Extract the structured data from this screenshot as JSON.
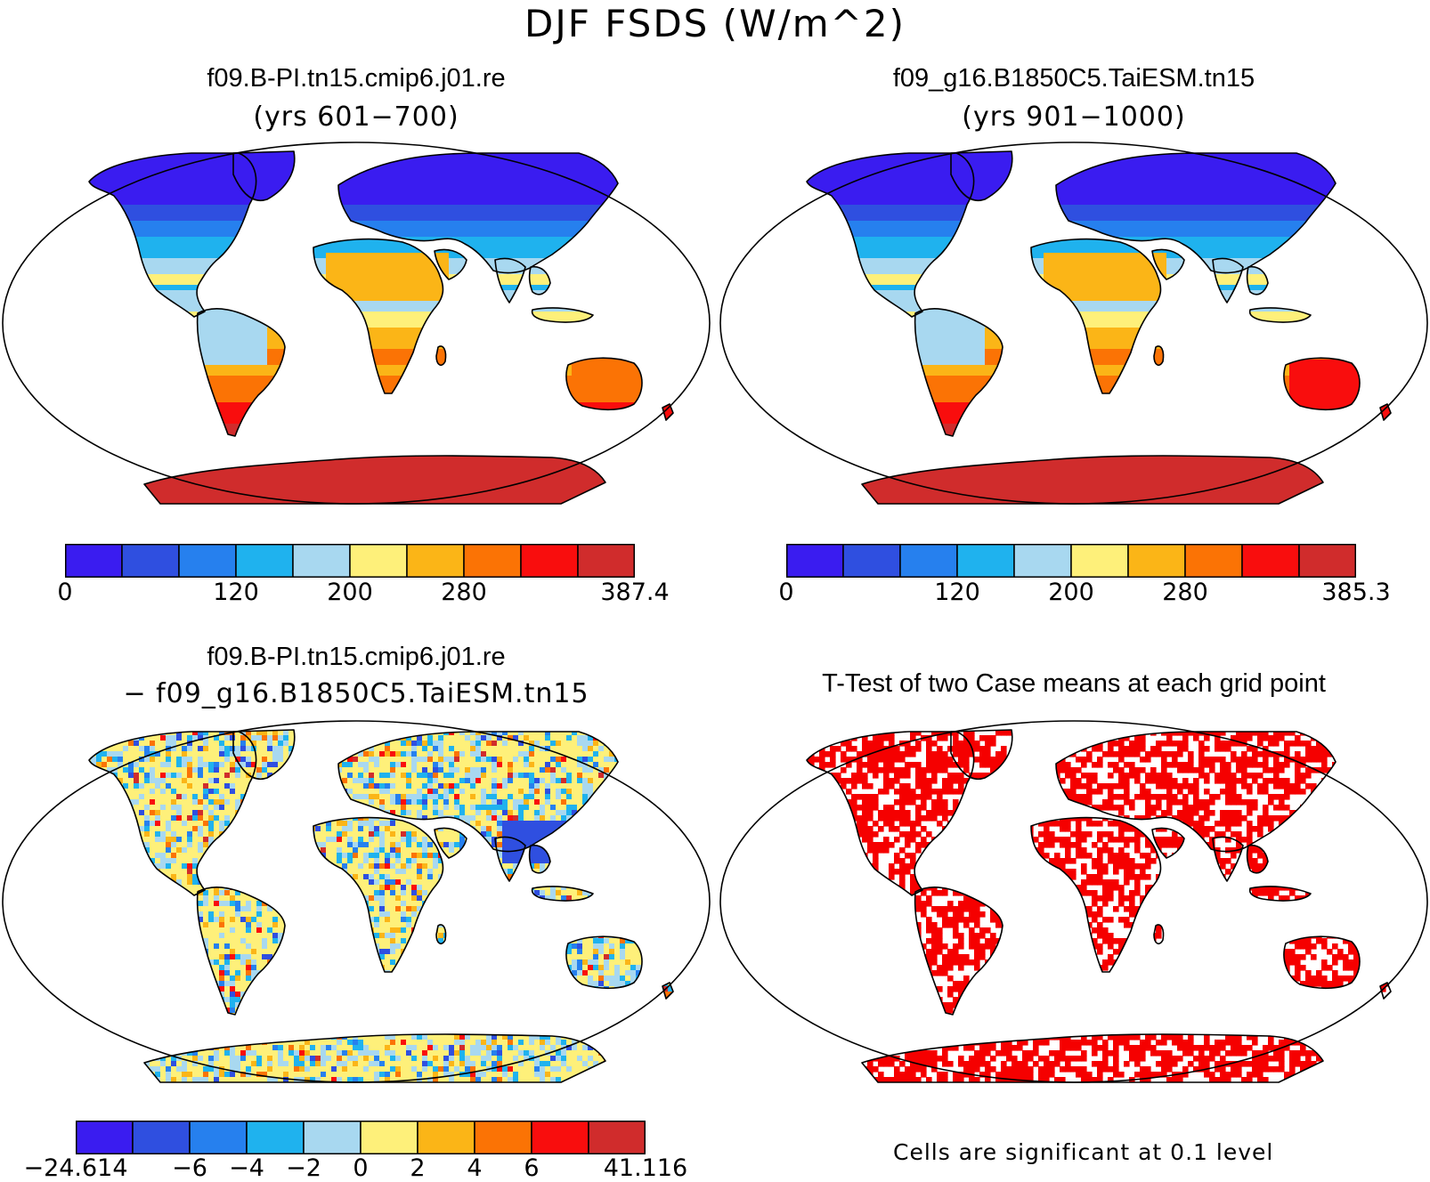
{
  "figure": {
    "title": "DJF FSDS (W/m^2)"
  },
  "colors": {
    "abs": [
      "#3a1cf0",
      "#2f4fe0",
      "#2680ee",
      "#1fb2ee",
      "#a8d8f0",
      "#fef07a",
      "#fbb517",
      "#fb7305",
      "#f90d0d",
      "#d02c2c"
    ],
    "diff": [
      "#3a1cf0",
      "#2f4fe0",
      "#2680ee",
      "#1fb2ee",
      "#a8d8f0",
      "#fef07a",
      "#fbb517",
      "#fb7305",
      "#f90d0d",
      "#d02c2c"
    ],
    "significant": "#f50000"
  },
  "panels": [
    {
      "id": "case1",
      "title_line1": "f09.B-PI.tn15.cmip6.j01.re",
      "title_line2": "(yrs 601−700)",
      "colorbar_labels": [
        {
          "text": "0",
          "bin": 0
        },
        {
          "text": "120",
          "bin": 3
        },
        {
          "text": "200",
          "bin": 5
        },
        {
          "text": "280",
          "bin": 7
        },
        {
          "text": "387.4",
          "bin": 10
        }
      ]
    },
    {
      "id": "case2",
      "title_line1": "f09_g16.B1850C5.TaiESM.tn15",
      "title_line2": "(yrs 901−1000)",
      "colorbar_labels": [
        {
          "text": "0",
          "bin": 0
        },
        {
          "text": "120",
          "bin": 3
        },
        {
          "text": "200",
          "bin": 5
        },
        {
          "text": "280",
          "bin": 7
        },
        {
          "text": "385.3",
          "bin": 10
        }
      ]
    },
    {
      "id": "difference",
      "title_line1": "f09.B-PI.tn15.cmip6.j01.re",
      "title_line2": "− f09_g16.B1850C5.TaiESM.tn15",
      "colorbar_labels": [
        {
          "text": "−24.614",
          "bin": 0
        },
        {
          "text": "−6",
          "bin": 2
        },
        {
          "text": "−4",
          "bin": 3
        },
        {
          "text": "−2",
          "bin": 4
        },
        {
          "text": "0",
          "bin": 5
        },
        {
          "text": "2",
          "bin": 6
        },
        {
          "text": "4",
          "bin": 7
        },
        {
          "text": "6",
          "bin": 8
        },
        {
          "text": "41.116",
          "bin": 10
        }
      ]
    },
    {
      "id": "ttest",
      "title_line1": "T-Test of two Case means at each grid point",
      "note": "Cells are significant at 0.1 level"
    }
  ]
}
